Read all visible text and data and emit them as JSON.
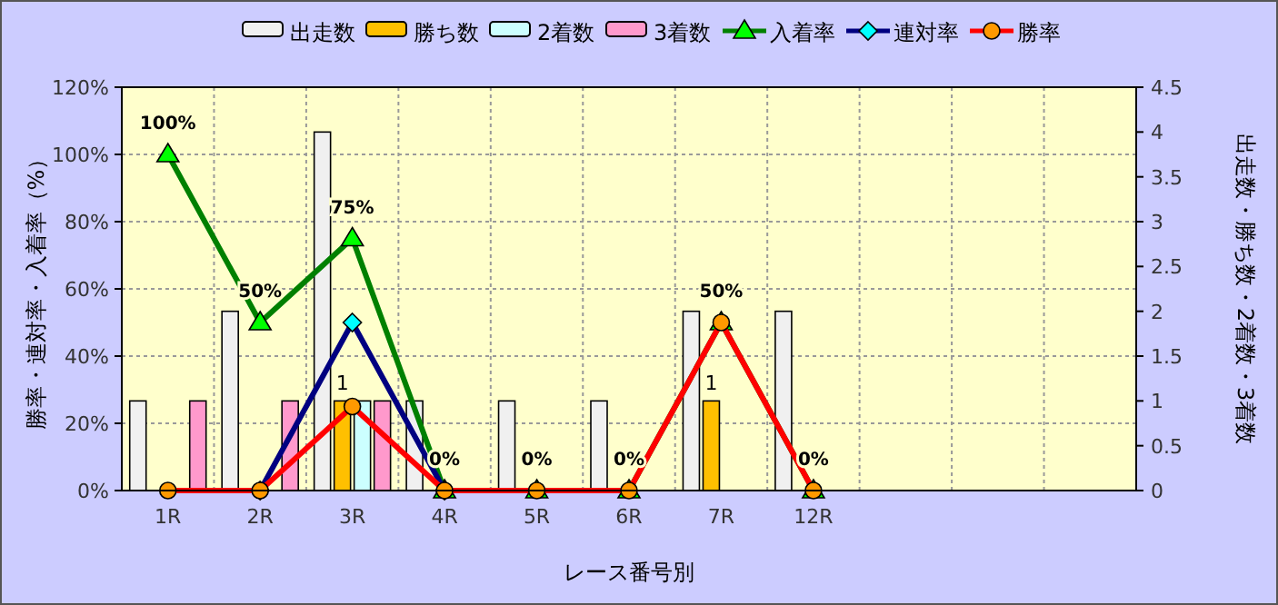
{
  "chart_data": {
    "type": "bar",
    "xlabel": "レース番号別",
    "ylabel": "勝率・連対率・入着率（%）",
    "y2label": "出走数・勝ち数・2着数・3着数",
    "categories": [
      "1R",
      "2R",
      "3R",
      "4R",
      "5R",
      "6R",
      "7R",
      "12R",
      null,
      null,
      null
    ],
    "series": [
      {
        "name": "出走数",
        "axis": "y2",
        "color": "#f0f0f0",
        "values": [
          1,
          2,
          4,
          1,
          1,
          1,
          2,
          2,
          null,
          null,
          null
        ]
      },
      {
        "name": "勝ち数",
        "axis": "y2",
        "color": "#ffc000",
        "values": [
          0,
          0,
          1,
          0,
          0,
          0,
          1,
          0,
          null,
          null,
          null
        ],
        "value_labels": [
          null,
          null,
          "1",
          null,
          null,
          null,
          "1",
          null,
          null,
          null,
          null
        ]
      },
      {
        "name": "2着数",
        "axis": "y2",
        "color": "#ccffff",
        "values": [
          0,
          0,
          1,
          0,
          0,
          0,
          0,
          0,
          null,
          null,
          null
        ]
      },
      {
        "name": "3着数",
        "axis": "y2",
        "color": "#ff99cc",
        "values": [
          1,
          1,
          1,
          0,
          0,
          0,
          0,
          0,
          null,
          null,
          null
        ]
      },
      {
        "name": "入着率",
        "type": "line",
        "marker": "triangle",
        "color": "#008000",
        "values": [
          100,
          50,
          75,
          0,
          0,
          0,
          50,
          0,
          null,
          null,
          null
        ],
        "value_labels": [
          "100%",
          "50%",
          "75%",
          "0%",
          "0%",
          "0%",
          "50%",
          "0%",
          null,
          null,
          null
        ]
      },
      {
        "name": "連対率",
        "type": "line",
        "marker": "diamond",
        "color": "#000080",
        "values": [
          null,
          0,
          50,
          0,
          null,
          null,
          null,
          null,
          null,
          null,
          null
        ]
      },
      {
        "name": "勝率",
        "type": "line",
        "marker": "circle",
        "color": "#ff0000",
        "values": [
          0,
          0,
          25,
          0,
          0,
          0,
          50,
          0,
          null,
          null,
          null
        ]
      }
    ],
    "ylim": [
      0,
      120
    ],
    "yticks": [
      {
        "value": 0,
        "label": "0%"
      },
      {
        "value": 20,
        "label": "20%"
      },
      {
        "value": 40,
        "label": "40%"
      },
      {
        "value": 60,
        "label": "60%"
      },
      {
        "value": 80,
        "label": "80%"
      },
      {
        "value": 100,
        "label": "100%"
      },
      {
        "value": 120,
        "label": "120%"
      }
    ],
    "y2lim": [
      0,
      4.5
    ],
    "y2ticks": [
      0,
      0.5,
      1,
      1.5,
      2,
      2.5,
      3,
      3.5,
      4,
      4.5
    ],
    "grid": true,
    "legend": "top"
  }
}
